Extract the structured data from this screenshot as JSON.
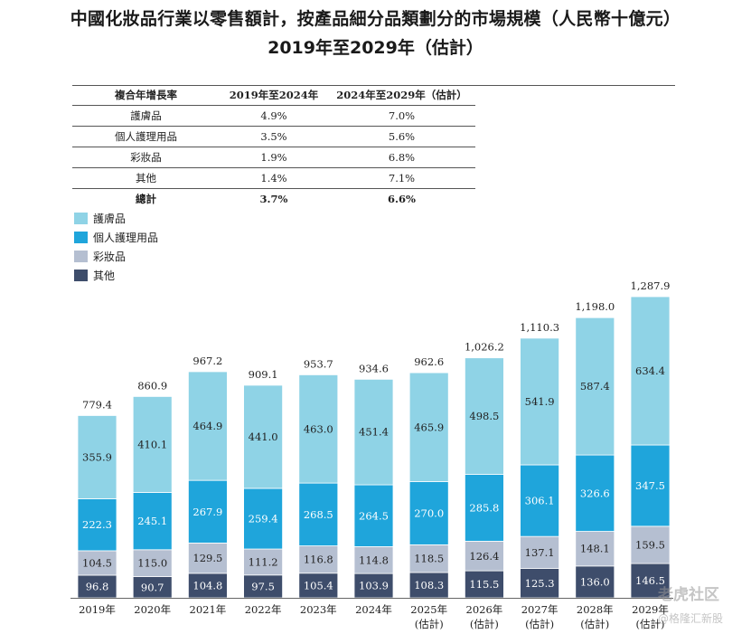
{
  "title": {
    "line1": "中國化妝品行業以零售額計，按產品細分品類劃分的市場規模（人民幣十億元）",
    "line2": "2019年至2029年（估計）"
  },
  "cagr_table": {
    "headers": [
      "複合年增長率",
      "2019年至2024年",
      "2024年至2029年（估計）"
    ],
    "rows": [
      [
        "護膚品",
        "4.9%",
        "7.0%"
      ],
      [
        "個人護理用品",
        "3.5%",
        "5.6%"
      ],
      [
        "彩妝品",
        "1.9%",
        "6.8%"
      ],
      [
        "其他",
        "1.4%",
        "7.1%"
      ]
    ],
    "total": [
      "總計",
      "3.7%",
      "6.6%"
    ]
  },
  "legend": [
    {
      "label": "護膚品",
      "color": "#8fd3e6"
    },
    {
      "label": "個人護理用品",
      "color": "#1fa5db"
    },
    {
      "label": "彩妝品",
      "color": "#b5bfd1"
    },
    {
      "label": "其他",
      "color": "#3e4d6b"
    }
  ],
  "watermark": {
    "line1": "老虎社区",
    "line2": "@格隆汇新股"
  },
  "chart_data": {
    "type": "bar",
    "stacked": true,
    "title": "中國化妝品行業以零售額計，按產品細分品類劃分的市場規模（人民幣十億元） 2019年至2029年（估計）",
    "categories": [
      "2019年",
      "2020年",
      "2021年",
      "2022年",
      "2023年",
      "2024年",
      "2025年",
      "2026年",
      "2027年",
      "2028年",
      "2029年"
    ],
    "category_sublabels": [
      "",
      "",
      "",
      "",
      "",
      "",
      "(估計)",
      "(估計)",
      "(估計)",
      "(估計)",
      "(估計)"
    ],
    "series": [
      {
        "name": "其他",
        "color": "#3e4d6b",
        "values": [
          96.8,
          90.7,
          104.8,
          97.5,
          105.4,
          103.9,
          108.3,
          115.5,
          125.3,
          136.0,
          146.5
        ]
      },
      {
        "name": "彩妝品",
        "color": "#b5bfd1",
        "values": [
          104.5,
          115.0,
          129.5,
          111.2,
          116.8,
          114.8,
          118.5,
          126.4,
          137.1,
          148.1,
          159.5
        ]
      },
      {
        "name": "個人護理用品",
        "color": "#1fa5db",
        "values": [
          222.3,
          245.1,
          267.9,
          259.4,
          268.5,
          264.5,
          270.0,
          285.8,
          306.1,
          326.6,
          347.5
        ]
      },
      {
        "name": "護膚品",
        "color": "#8fd3e6",
        "values": [
          355.9,
          410.1,
          464.9,
          441.0,
          463.0,
          451.4,
          465.9,
          498.5,
          541.9,
          587.4,
          634.4
        ]
      }
    ],
    "totals": [
      "779.4",
      "860.9",
      "967.2",
      "909.1",
      "953.7",
      "934.6",
      "962.6",
      "1,026.2",
      "1,110.3",
      "1,198.0",
      "1,287.9"
    ],
    "total_values": [
      779.4,
      860.9,
      967.2,
      909.1,
      953.7,
      934.6,
      962.6,
      1026.2,
      1110.3,
      1198.0,
      1287.9
    ],
    "xlabel": "",
    "ylabel": "",
    "ylim": [
      0,
      1287.9
    ]
  }
}
